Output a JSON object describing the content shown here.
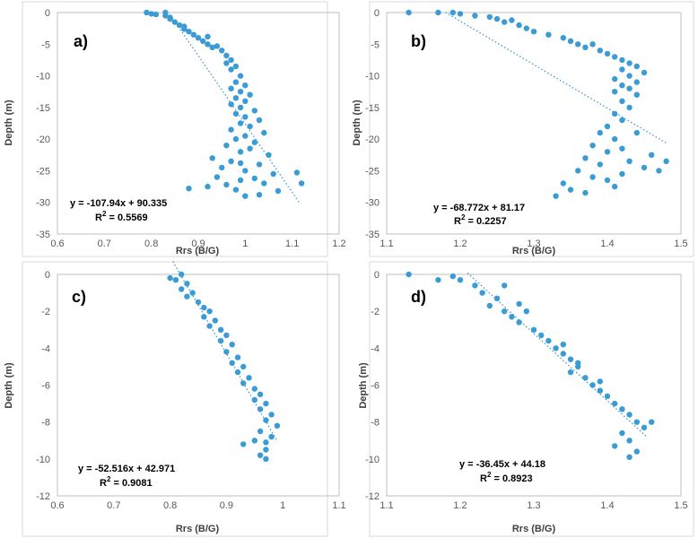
{
  "chart_data": [
    {
      "type": "scatter",
      "panel_label": "a)",
      "xlabel": "Rrs (B/G)",
      "ylabel": "Depth (m)",
      "xlim": [
        0.6,
        1.2
      ],
      "ylim": [
        -35,
        0
      ],
      "xticks": [
        "0.6",
        "0.7",
        "0.8",
        "0.9",
        "1",
        "1.1",
        "1.2"
      ],
      "yticks": [
        "0",
        "-5",
        "-10",
        "-15",
        "-20",
        "-25",
        "-30",
        "-35"
      ],
      "equation": "y = -107.94x + 90.335",
      "r2_prefix": "R",
      "r2_exp": "2",
      "r2_suffix": " = 0.5569",
      "trendline": {
        "slope": -107.94,
        "intercept": 90.335,
        "x_range": [
          0.84,
          1.115
        ]
      },
      "points": [
        [
          0.79,
          0
        ],
        [
          0.8,
          -0.2
        ],
        [
          0.81,
          -0.3
        ],
        [
          0.83,
          0
        ],
        [
          0.83,
          -0.5
        ],
        [
          0.84,
          -0.8
        ],
        [
          0.84,
          -1
        ],
        [
          0.85,
          -1.5
        ],
        [
          0.86,
          -2
        ],
        [
          0.87,
          -2.2
        ],
        [
          0.87,
          -2.6
        ],
        [
          0.88,
          -3
        ],
        [
          0.89,
          -3.5
        ],
        [
          0.9,
          -4
        ],
        [
          0.91,
          -4.5
        ],
        [
          0.92,
          -5
        ],
        [
          0.93,
          -5.5
        ],
        [
          0.94,
          -5.3
        ],
        [
          0.92,
          -3.8
        ],
        [
          0.95,
          -6
        ],
        [
          0.96,
          -6.8
        ],
        [
          0.97,
          -7.5
        ],
        [
          0.96,
          -8
        ],
        [
          0.98,
          -8.5
        ],
        [
          0.97,
          -9
        ],
        [
          0.99,
          -10
        ],
        [
          0.98,
          -11
        ],
        [
          1.0,
          -11.5
        ],
        [
          0.97,
          -12
        ],
        [
          0.99,
          -12.5
        ],
        [
          1.01,
          -13
        ],
        [
          0.98,
          -13.5
        ],
        [
          1.0,
          -14
        ],
        [
          0.97,
          -14.5
        ],
        [
          0.99,
          -15
        ],
        [
          1.02,
          -15.5
        ],
        [
          0.98,
          -16
        ],
        [
          1.0,
          -16.5
        ],
        [
          1.03,
          -17
        ],
        [
          0.99,
          -17.5
        ],
        [
          1.01,
          -18
        ],
        [
          0.97,
          -18.5
        ],
        [
          1.04,
          -19
        ],
        [
          1.0,
          -19.5
        ],
        [
          0.98,
          -20
        ],
        [
          1.02,
          -20.5
        ],
        [
          0.96,
          -21
        ],
        [
          1.01,
          -21.5
        ],
        [
          0.99,
          -22
        ],
        [
          1.05,
          -22.5
        ],
        [
          0.93,
          -23
        ],
        [
          0.97,
          -23.5
        ],
        [
          1.03,
          -24
        ],
        [
          0.95,
          -24.5
        ],
        [
          1.0,
          -25
        ],
        [
          1.06,
          -25.5
        ],
        [
          0.94,
          -26
        ],
        [
          0.99,
          -26.5
        ],
        [
          1.04,
          -27
        ],
        [
          0.92,
          -27.5
        ],
        [
          0.98,
          -28
        ],
        [
          1.07,
          -28.2
        ],
        [
          0.88,
          -27.8
        ],
        [
          1.0,
          -29
        ],
        [
          1.03,
          -28.8
        ],
        [
          1.11,
          -25.3
        ],
        [
          1.12,
          -27
        ],
        [
          0.96,
          -27.2
        ],
        [
          0.99,
          -23.8
        ],
        [
          1.02,
          -26.2
        ]
      ]
    },
    {
      "type": "scatter",
      "panel_label": "b)",
      "xlabel": "Rrs (B/G)",
      "ylabel": "Depth (m)",
      "xlim": [
        1.1,
        1.5
      ],
      "ylim": [
        -35,
        0
      ],
      "xticks": [
        "1.1",
        "1.2",
        "1.3",
        "1.4",
        "1.5"
      ],
      "yticks": [
        "0",
        "-5",
        "-10",
        "-15",
        "-20",
        "-25",
        "-30",
        "-35"
      ],
      "equation": "y = -68.772x + 81.17",
      "r2_prefix": "R",
      "r2_exp": "2",
      "r2_suffix": " = 0.2257",
      "trendline": {
        "slope": -68.772,
        "intercept": 81.17,
        "x_range": [
          1.18,
          1.48
        ]
      },
      "points": [
        [
          1.13,
          0
        ],
        [
          1.17,
          0
        ],
        [
          1.19,
          0
        ],
        [
          1.2,
          -0.2
        ],
        [
          1.22,
          -0.5
        ],
        [
          1.24,
          -0.7
        ],
        [
          1.25,
          -1
        ],
        [
          1.26,
          -1.5
        ],
        [
          1.27,
          -1.2
        ],
        [
          1.28,
          -2
        ],
        [
          1.29,
          -2.5
        ],
        [
          1.3,
          -3
        ],
        [
          1.32,
          -3.5
        ],
        [
          1.34,
          -4
        ],
        [
          1.35,
          -4.5
        ],
        [
          1.36,
          -5
        ],
        [
          1.37,
          -5.5
        ],
        [
          1.38,
          -5
        ],
        [
          1.39,
          -6
        ],
        [
          1.4,
          -6.5
        ],
        [
          1.41,
          -7
        ],
        [
          1.42,
          -7.5
        ],
        [
          1.43,
          -8
        ],
        [
          1.44,
          -8.5
        ],
        [
          1.42,
          -9
        ],
        [
          1.45,
          -9.5
        ],
        [
          1.43,
          -10
        ],
        [
          1.41,
          -10.5
        ],
        [
          1.44,
          -11
        ],
        [
          1.42,
          -11.5
        ],
        [
          1.43,
          -12
        ],
        [
          1.41,
          -12.5
        ],
        [
          1.44,
          -13
        ],
        [
          1.42,
          -14
        ],
        [
          1.43,
          -15
        ],
        [
          1.41,
          -16
        ],
        [
          1.42,
          -17
        ],
        [
          1.4,
          -18
        ],
        [
          1.39,
          -19
        ],
        [
          1.41,
          -20
        ],
        [
          1.38,
          -21
        ],
        [
          1.42,
          -21.5
        ],
        [
          1.4,
          -22
        ],
        [
          1.37,
          -23
        ],
        [
          1.43,
          -23.5
        ],
        [
          1.39,
          -24
        ],
        [
          1.45,
          -24.5
        ],
        [
          1.36,
          -25
        ],
        [
          1.42,
          -25.5
        ],
        [
          1.38,
          -26
        ],
        [
          1.34,
          -27
        ],
        [
          1.4,
          -26.5
        ],
        [
          1.35,
          -28
        ],
        [
          1.33,
          -29
        ],
        [
          1.46,
          -22.5
        ],
        [
          1.47,
          -25
        ],
        [
          1.48,
          -23.5
        ],
        [
          1.44,
          -19
        ],
        [
          1.41,
          -27.5
        ],
        [
          1.37,
          -28.5
        ]
      ]
    },
    {
      "type": "scatter",
      "panel_label": "c)",
      "xlabel": "Rrs (B/G)",
      "ylabel": "Depth (m)",
      "xlim": [
        0.6,
        1.1
      ],
      "ylim": [
        -12,
        0
      ],
      "xticks": [
        "0.6",
        "0.7",
        "0.8",
        "0.9",
        "1",
        "1.1"
      ],
      "yticks": [
        "0",
        "-2",
        "-4",
        "-6",
        "-8",
        "-10",
        "-12"
      ],
      "equation": "y = -52.516x + 42.971",
      "r2_prefix": "R",
      "r2_exp": "2",
      "r2_suffix": " = 0.9081",
      "trendline": {
        "slope": -52.516,
        "intercept": 42.971,
        "x_range": [
          0.805,
          0.99
        ]
      },
      "points": [
        [
          0.8,
          -0.2
        ],
        [
          0.81,
          -0.3
        ],
        [
          0.82,
          0
        ],
        [
          0.83,
          -0.5
        ],
        [
          0.82,
          -0.8
        ],
        [
          0.84,
          -1
        ],
        [
          0.83,
          -1.2
        ],
        [
          0.85,
          -1.5
        ],
        [
          0.86,
          -1.8
        ],
        [
          0.87,
          -2
        ],
        [
          0.86,
          -2.3
        ],
        [
          0.88,
          -2.5
        ],
        [
          0.87,
          -2.8
        ],
        [
          0.89,
          -3
        ],
        [
          0.9,
          -3.3
        ],
        [
          0.89,
          -3.6
        ],
        [
          0.91,
          -3.8
        ],
        [
          0.9,
          -4.2
        ],
        [
          0.92,
          -4.5
        ],
        [
          0.91,
          -4.8
        ],
        [
          0.93,
          -5
        ],
        [
          0.92,
          -5.3
        ],
        [
          0.94,
          -5.6
        ],
        [
          0.93,
          -5.9
        ],
        [
          0.95,
          -6.2
        ],
        [
          0.96,
          -6.5
        ],
        [
          0.95,
          -6.8
        ],
        [
          0.97,
          -7
        ],
        [
          0.96,
          -7.3
        ],
        [
          0.98,
          -7.6
        ],
        [
          0.97,
          -7.9
        ],
        [
          0.99,
          -8.2
        ],
        [
          0.96,
          -8.5
        ],
        [
          0.98,
          -8.8
        ],
        [
          0.97,
          -9.1
        ],
        [
          0.93,
          -9.2
        ],
        [
          0.97,
          -9.5
        ],
        [
          0.96,
          -9.8
        ],
        [
          0.97,
          -10
        ],
        [
          0.95,
          -9
        ]
      ]
    },
    {
      "type": "scatter",
      "panel_label": "d)",
      "xlabel": "Rrs (B/G)",
      "ylabel": "Depth (m)",
      "xlim": [
        1.1,
        1.5
      ],
      "ylim": [
        -12,
        0
      ],
      "xticks": [
        "1.1",
        "1.2",
        "1.3",
        "1.4",
        "1.5"
      ],
      "yticks": [
        "0",
        "-2",
        "-4",
        "-6",
        "-8",
        "-10",
        "-12"
      ],
      "equation": "y = -36.45x + 44.18",
      "r2_prefix": "R",
      "r2_exp": "2",
      "r2_suffix": " = 0.8923",
      "trendline": {
        "slope": -36.45,
        "intercept": 44.18,
        "x_range": [
          1.21,
          1.455
        ]
      },
      "points": [
        [
          1.13,
          0
        ],
        [
          1.17,
          -0.3
        ],
        [
          1.19,
          -0.1
        ],
        [
          1.2,
          -0.3
        ],
        [
          1.22,
          -0.6
        ],
        [
          1.23,
          -1
        ],
        [
          1.25,
          -1.3
        ],
        [
          1.24,
          -1.7
        ],
        [
          1.26,
          -2
        ],
        [
          1.27,
          -2.3
        ],
        [
          1.28,
          -2.6
        ],
        [
          1.29,
          -2
        ],
        [
          1.3,
          -3
        ],
        [
          1.31,
          -3.3
        ],
        [
          1.32,
          -3.6
        ],
        [
          1.33,
          -4
        ],
        [
          1.34,
          -4.3
        ],
        [
          1.35,
          -4.6
        ],
        [
          1.36,
          -5
        ],
        [
          1.35,
          -5.3
        ],
        [
          1.37,
          -5.6
        ],
        [
          1.38,
          -6
        ],
        [
          1.39,
          -6.3
        ],
        [
          1.4,
          -6.6
        ],
        [
          1.41,
          -7
        ],
        [
          1.42,
          -7.3
        ],
        [
          1.43,
          -7.6
        ],
        [
          1.44,
          -8
        ],
        [
          1.45,
          -8.3
        ],
        [
          1.46,
          -8
        ],
        [
          1.42,
          -8.6
        ],
        [
          1.43,
          -9
        ],
        [
          1.41,
          -9.3
        ],
        [
          1.44,
          -9.6
        ],
        [
          1.43,
          -9.9
        ],
        [
          1.26,
          -0.6
        ],
        [
          1.28,
          -1.6
        ],
        [
          1.34,
          -3.8
        ],
        [
          1.36,
          -4.8
        ],
        [
          1.39,
          -5.8
        ]
      ]
    }
  ]
}
